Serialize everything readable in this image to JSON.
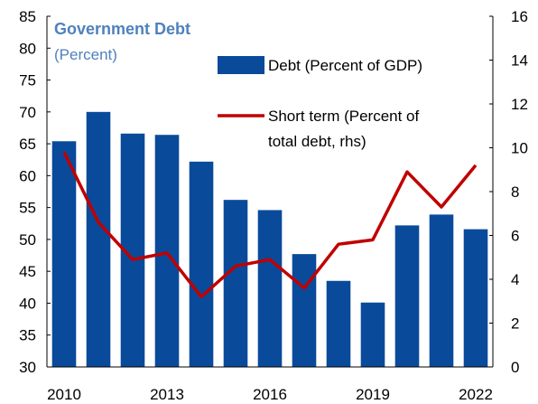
{
  "chart_data": {
    "type": "bar",
    "title": "Government Debt",
    "subtitle": "(Percent)",
    "categories": [
      "2010",
      "2011",
      "2012",
      "2013",
      "2014",
      "2015",
      "2016",
      "2017",
      "2018",
      "2019",
      "2020",
      "2021",
      "2022"
    ],
    "x_tick_labels": [
      "2010",
      "2013",
      "2016",
      "2019",
      "2022"
    ],
    "y_left": {
      "range": [
        30,
        85
      ],
      "ticks": [
        30,
        35,
        40,
        45,
        50,
        55,
        60,
        65,
        70,
        75,
        80,
        85
      ]
    },
    "y_right": {
      "range": [
        0,
        16
      ],
      "ticks": [
        0,
        2,
        4,
        6,
        8,
        10,
        12,
        14,
        16
      ]
    },
    "series": [
      {
        "name": "Debt (Percent of GDP)",
        "type": "bar",
        "axis": "left",
        "color": "#0a4a9b",
        "values": [
          65.4,
          70.0,
          66.6,
          66.4,
          62.2,
          56.2,
          54.6,
          47.7,
          43.5,
          40.1,
          52.2,
          53.9,
          51.6
        ]
      },
      {
        "name": "Short term (Percent of total debt, rhs)",
        "name_lines": [
          "Short term (Percent of",
          "total debt, rhs)"
        ],
        "type": "line",
        "axis": "right",
        "color": "#c00000",
        "values": [
          9.8,
          6.6,
          4.9,
          5.2,
          3.2,
          4.6,
          4.9,
          3.6,
          5.6,
          5.8,
          8.9,
          7.3,
          9.2
        ]
      }
    ],
    "colors": {
      "title": "#4f81bd",
      "axis": "#000000"
    }
  }
}
